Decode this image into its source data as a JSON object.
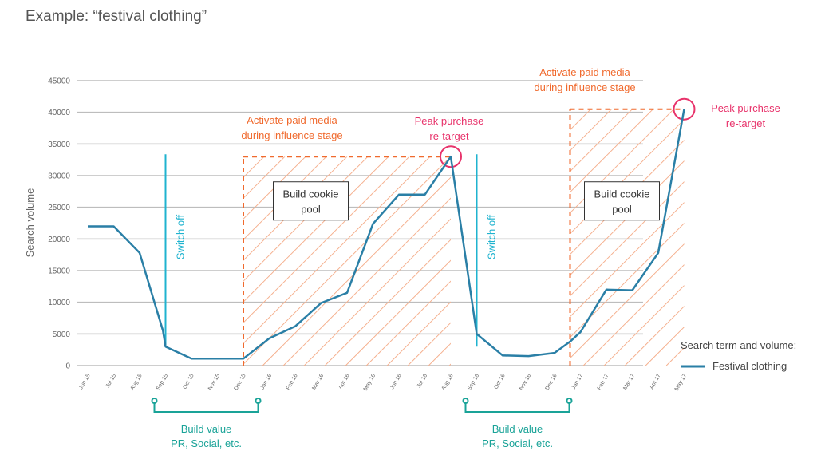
{
  "page_title": "Example: “festival clothing”",
  "colors": {
    "series": "#2a7fa6",
    "switch_off": "#1fb3cf",
    "paid_media": "#f06a2e",
    "peak": "#e8336b",
    "build_value": "#1aa398",
    "grid": "#bdbdbd",
    "axis_text": "#666666"
  },
  "chart_data": {
    "type": "line",
    "ylabel": "Search volume",
    "ylim": [
      0,
      45000
    ],
    "yticks": [
      "0",
      "5000",
      "10000",
      "15000",
      "20000",
      "25000",
      "30000",
      "35000",
      "40000",
      "45000"
    ],
    "categories": [
      "Jun 15",
      "Jul 15",
      "Aug 15",
      "Sep 15",
      "Oct 15",
      "Nov 15",
      "Dec 15",
      "Jan 16",
      "Feb 16",
      "Mar 16",
      "Apr 16",
      "May 16",
      "Jun 16",
      "Jul 16",
      "Aug 16",
      "Sep 16",
      "Oct 16",
      "Nov 16",
      "Dec 16",
      "Jan 17",
      "Feb 17",
      "Mar 17",
      "Apr 17",
      "May 17"
    ],
    "grid": true,
    "series": [
      {
        "name": "Festival clothing",
        "points": [
          [
            0,
            22000
          ],
          [
            1,
            22000
          ],
          [
            2,
            17800
          ],
          [
            2.9,
            5500
          ],
          [
            3,
            3000
          ],
          [
            4,
            1100
          ],
          [
            5,
            1100
          ],
          [
            6,
            1100
          ],
          [
            7,
            4300
          ],
          [
            8,
            6200
          ],
          [
            9,
            9900
          ],
          [
            10,
            11500
          ],
          [
            11,
            22400
          ],
          [
            12,
            27000
          ],
          [
            13,
            27000
          ],
          [
            14,
            33000
          ],
          [
            15,
            5000
          ],
          [
            16,
            1600
          ],
          [
            17,
            1500
          ],
          [
            18,
            2000
          ],
          [
            18.6,
            3800
          ],
          [
            19,
            5300
          ],
          [
            20,
            12000
          ],
          [
            21,
            11900
          ],
          [
            22,
            17800
          ],
          [
            23,
            40500
          ]
        ]
      }
    ],
    "legend": {
      "title": "Search term and volume:",
      "entry": "Festival clothing",
      "position": "right"
    },
    "annotations": {
      "switch_off": [
        {
          "label": "Switch off",
          "x": 3,
          "y_top": 33000
        },
        {
          "label": "Switch off",
          "x": 15,
          "y_top": 33000
        }
      ],
      "paid_media": [
        {
          "line1": "Activate paid media",
          "line2": "during influence stage",
          "x_start": 6,
          "x_end": 14,
          "y_top": 33000
        },
        {
          "line1": "Activate paid media",
          "line2": "during influence stage",
          "x_start": 18.6,
          "x_end": 23,
          "y_top": 40500
        }
      ],
      "peaks": [
        {
          "line1": "Peak purchase",
          "line2": "re-target",
          "x": 14,
          "y": 33000
        },
        {
          "line1": "Peak purchase",
          "line2": "re-target",
          "x": 23,
          "y": 40500
        }
      ],
      "cookie_pool": [
        {
          "line1": "Build cookie",
          "line2": "pool",
          "x_center": 8.6,
          "y_center": 26000
        },
        {
          "line1": "Build cookie",
          "line2": "pool",
          "x_center": 20.6,
          "y_center": 26000
        }
      ],
      "build_value": [
        {
          "line1": "Build value",
          "line2": "PR, Social, etc.",
          "x_start": 3,
          "x_end": 7
        },
        {
          "line1": "Build value",
          "line2": "PR, Social, etc.",
          "x_start": 15,
          "x_end": 19
        }
      ]
    }
  }
}
